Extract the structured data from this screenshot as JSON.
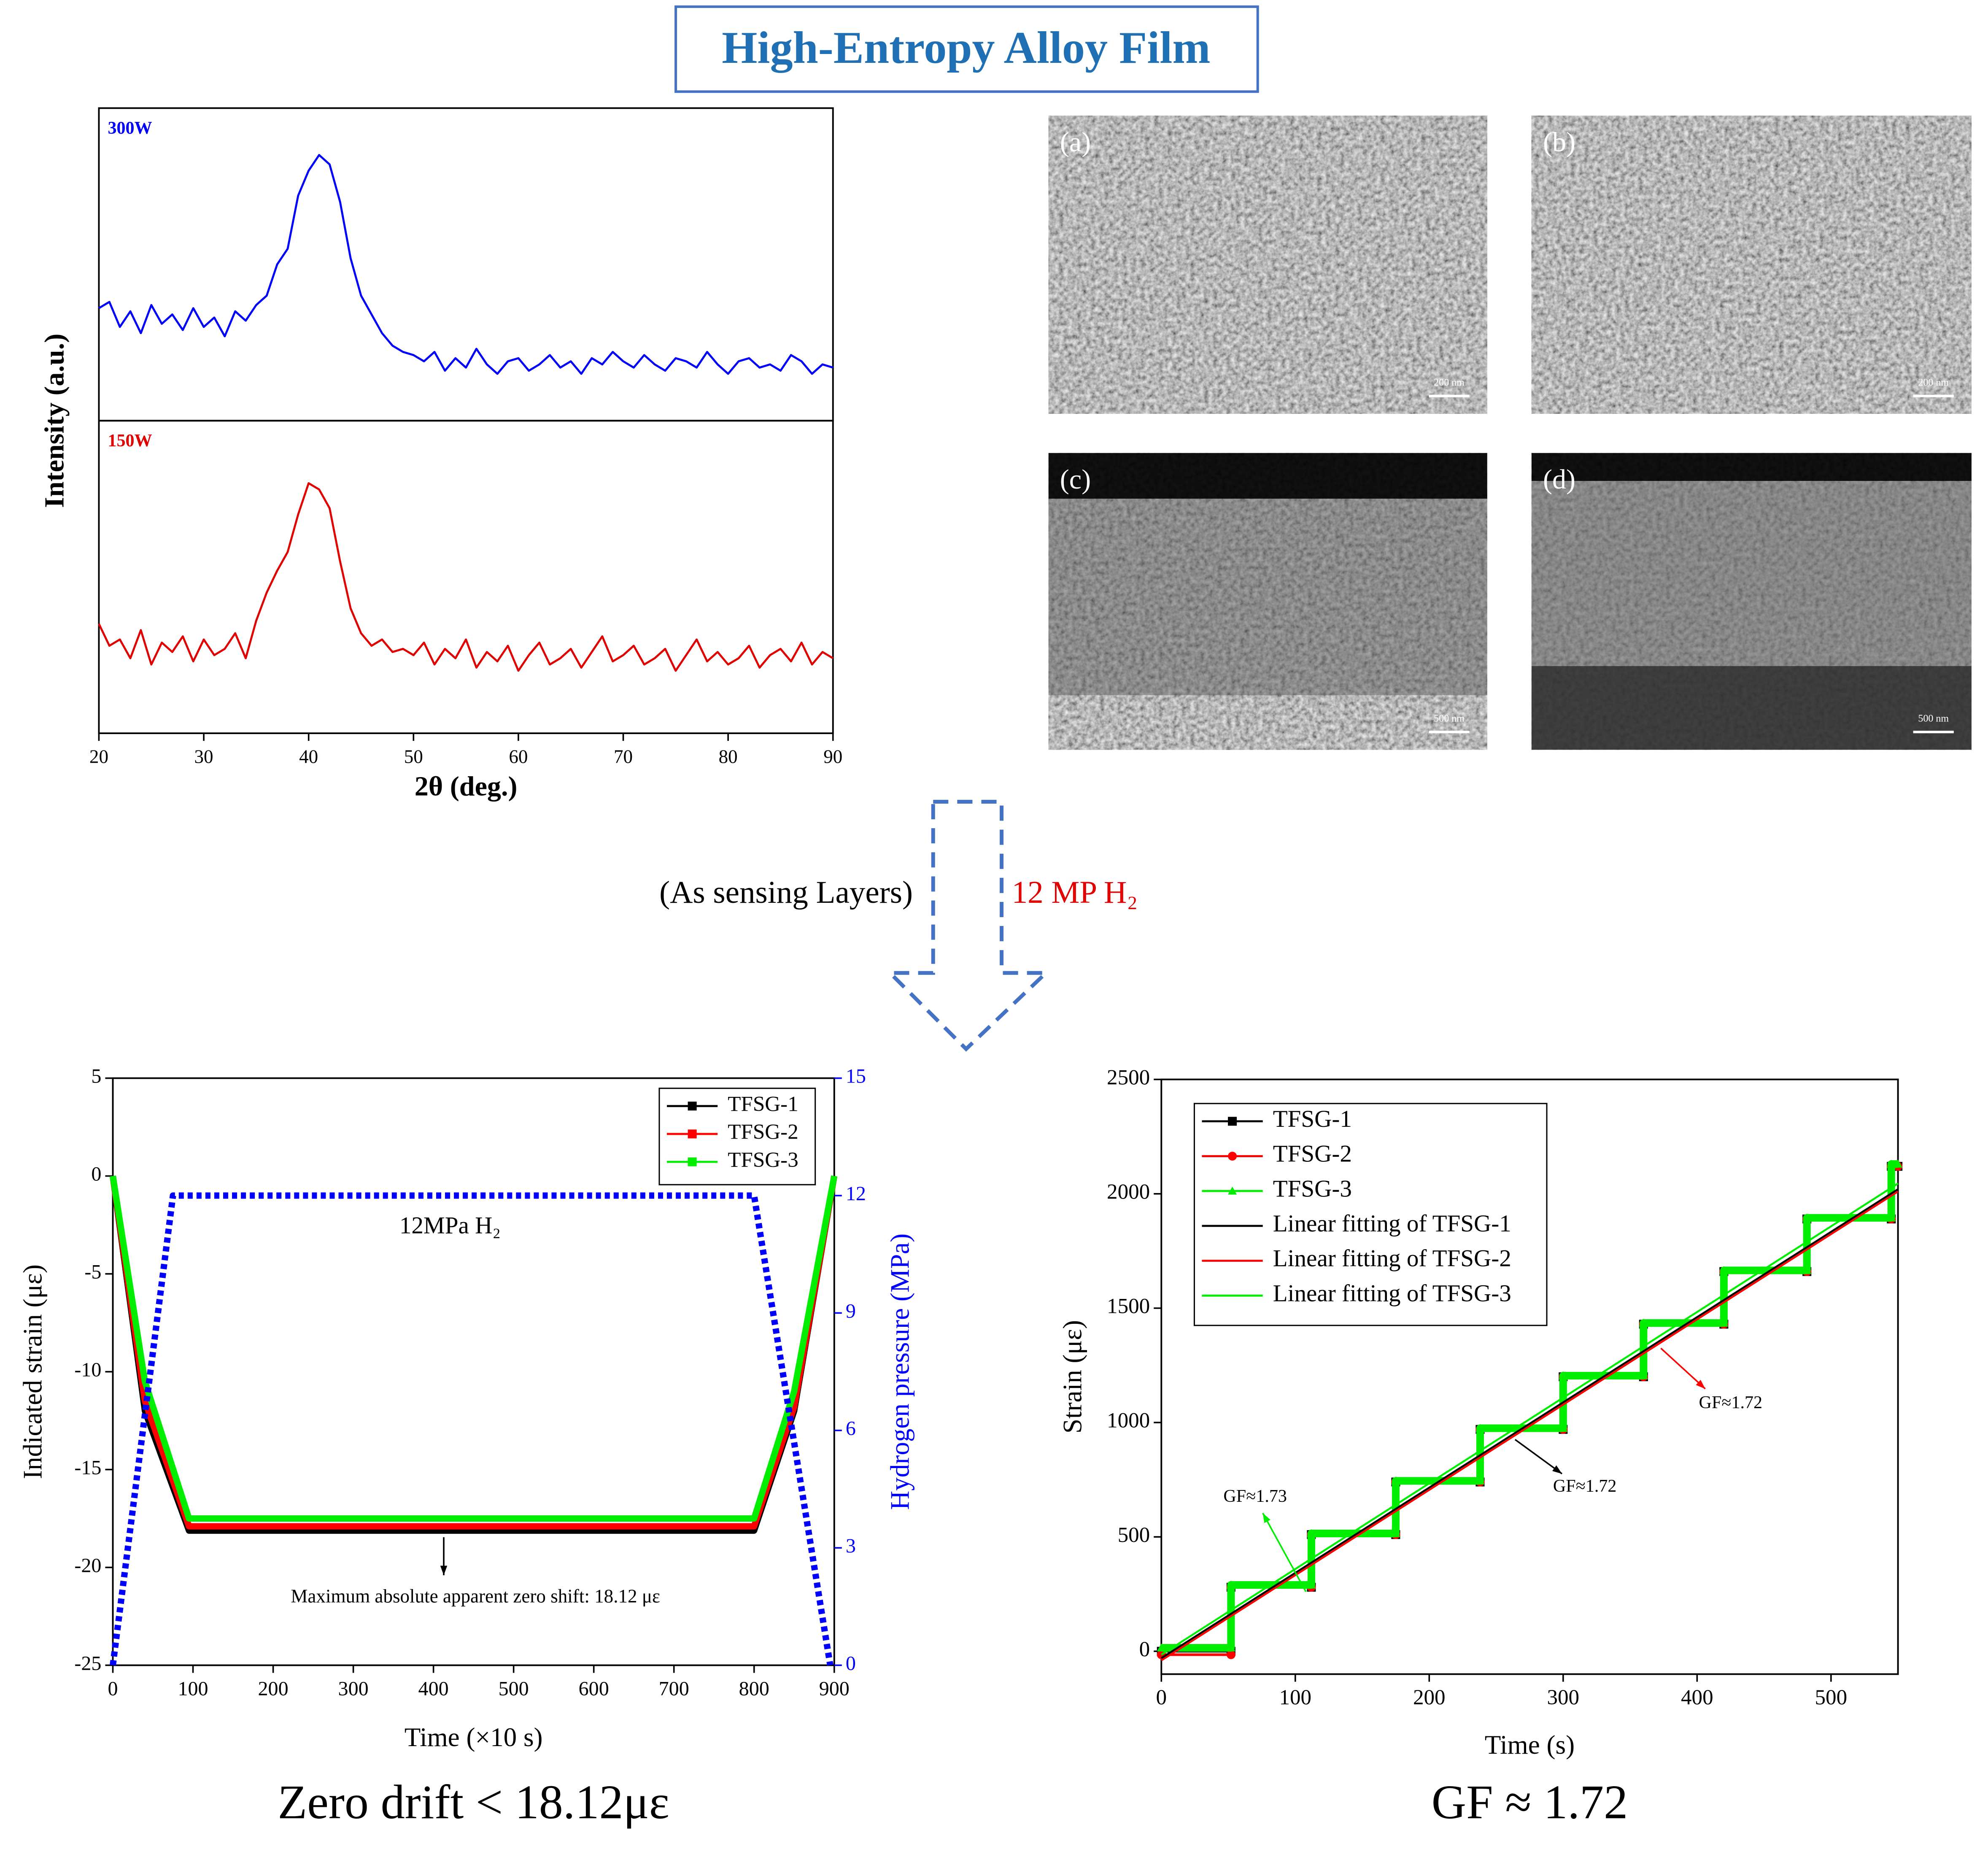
{
  "title": "High-Entropy Alloy Film",
  "flow_labels": [
    "(As sensing Layers)",
    "12 MP H₂"
  ],
  "sem_panels": [
    {
      "label": "(a)",
      "scale_bar": "200 nm"
    },
    {
      "label": "(b)",
      "scale_bar": "200 nm"
    },
    {
      "label": "(c)",
      "scale_bar": "500 nm"
    },
    {
      "label": "(d)",
      "scale_bar": "500 nm"
    }
  ],
  "chart_data": [
    {
      "type": "line",
      "layout": "stacked",
      "xlabel": "2θ (deg.)",
      "ylabel": "Intensity (a.u.)",
      "xlim": [
        20,
        90
      ],
      "xticks": [
        20,
        30,
        40,
        50,
        60,
        70,
        80,
        90
      ],
      "ylim": [
        0,
        100
      ],
      "x": [
        20,
        21,
        22,
        23,
        24,
        25,
        26,
        27,
        28,
        29,
        30,
        31,
        32,
        33,
        34,
        35,
        36,
        37,
        38,
        39,
        40,
        41,
        42,
        43,
        44,
        45,
        46,
        47,
        48,
        49,
        50,
        51,
        52,
        53,
        54,
        55,
        56,
        57,
        58,
        59,
        60,
        61,
        62,
        63,
        64,
        65,
        66,
        67,
        68,
        69,
        70,
        71,
        72,
        73,
        74,
        75,
        76,
        77,
        78,
        79,
        80,
        81,
        82,
        83,
        84,
        85,
        86,
        87,
        88,
        89,
        90
      ],
      "series": [
        {
          "name": "300W",
          "color": "#0000ff",
          "values": [
            36,
            38,
            30,
            35,
            28,
            37,
            31,
            34,
            29,
            36,
            30,
            33,
            27,
            35,
            32,
            37,
            40,
            50,
            55,
            72,
            80,
            85,
            82,
            70,
            52,
            40,
            34,
            28,
            24,
            22,
            21,
            19,
            22,
            16,
            20,
            17,
            23,
            18,
            15,
            19,
            20,
            16,
            18,
            21,
            17,
            19,
            15,
            20,
            18,
            22,
            19,
            17,
            21,
            18,
            16,
            20,
            19,
            17,
            22,
            18,
            15,
            19,
            20,
            17,
            18,
            16,
            21,
            19,
            15,
            18,
            17
          ]
        },
        {
          "name": "150W",
          "color": "#e00000",
          "values": [
            35,
            28,
            30,
            24,
            33,
            22,
            29,
            26,
            31,
            23,
            30,
            25,
            27,
            32,
            24,
            36,
            45,
            52,
            58,
            70,
            80,
            78,
            72,
            55,
            40,
            32,
            28,
            30,
            26,
            27,
            25,
            29,
            22,
            27,
            24,
            30,
            21,
            26,
            23,
            28,
            20,
            25,
            29,
            22,
            24,
            27,
            21,
            26,
            31,
            23,
            25,
            28,
            22,
            24,
            27,
            20,
            25,
            30,
            23,
            26,
            22,
            24,
            28,
            21,
            25,
            27,
            23,
            29,
            22,
            26,
            24
          ]
        }
      ]
    },
    {
      "type": "line",
      "xlabel": "Time (×10 s)",
      "ylabel": "Indicated strain (με)",
      "y2label": "Hydrogen pressure (MPa)",
      "xlim": [
        0,
        900
      ],
      "xticks": [
        0,
        100,
        200,
        300,
        400,
        500,
        600,
        700,
        800,
        900
      ],
      "ylim": [
        -25,
        5
      ],
      "yticks": [
        -25,
        -20,
        -15,
        -10,
        -5,
        0,
        5
      ],
      "y2lim": [
        0,
        15
      ],
      "y2ticks": [
        0,
        3,
        6,
        9,
        12,
        15
      ],
      "y2color": "#0000ff",
      "legend": "upper right",
      "caption": "Zero drift < 18.12με",
      "annotations": [
        {
          "text": "12MPa H₂"
        },
        {
          "text": "Maximum absolute apparent zero shift: 18.12 με"
        }
      ],
      "series": [
        {
          "name": "TFSG-1",
          "color": "#000000",
          "marker": "square",
          "x": [
            0,
            40,
            95,
            800,
            850,
            900
          ],
          "values": [
            0,
            -12,
            -18.12,
            -18.12,
            -12,
            0
          ]
        },
        {
          "name": "TFSG-2",
          "color": "#ff0000",
          "marker": "square",
          "x": [
            0,
            40,
            95,
            800,
            850,
            900
          ],
          "values": [
            0,
            -11.5,
            -17.9,
            -17.9,
            -11.8,
            0
          ]
        },
        {
          "name": "TFSG-3",
          "color": "#00ee00",
          "marker": "square",
          "x": [
            0,
            40,
            95,
            800,
            850,
            900
          ],
          "values": [
            0,
            -10.5,
            -17.5,
            -17.5,
            -11,
            0
          ]
        },
        {
          "color": "#0000ff",
          "axis": "y2",
          "line_style": "dotted",
          "x": [
            0,
            75,
            800,
            895
          ],
          "values": [
            0,
            12,
            12,
            0
          ]
        }
      ]
    },
    {
      "type": "line",
      "xlabel": "Time (s)",
      "ylabel": "Strain (με)",
      "xlim": [
        0,
        550
      ],
      "xticks": [
        0,
        100,
        200,
        300,
        400,
        500
      ],
      "ylim": [
        -100,
        2500
      ],
      "yticks": [
        0,
        500,
        1000,
        1500,
        2000,
        2500
      ],
      "legend": "upper left",
      "show_markers": true,
      "caption": "GF ≈ 1.72",
      "annotations": [
        {
          "text": "GF≈1.72",
          "color": "#ff0000"
        },
        {
          "text": "GF≈1.72",
          "color": "#000000"
        },
        {
          "text": "GF≈1.73",
          "color": "#00ee00"
        }
      ],
      "series": [
        {
          "name": "TFSG-1",
          "color": "#000000",
          "marker": "square",
          "x": [
            0,
            52,
            52,
            112,
            112,
            175,
            175,
            238,
            238,
            300,
            300,
            360,
            360,
            420,
            420,
            482,
            482,
            545,
            545,
            550
          ],
          "values": [
            0,
            0,
            280,
            280,
            510,
            510,
            740,
            740,
            970,
            970,
            1200,
            1200,
            1430,
            1430,
            1660,
            1660,
            1890,
            1890,
            2120,
            2120
          ]
        },
        {
          "name": "TFSG-2",
          "color": "#ff0000",
          "marker": "circle",
          "x": [
            0,
            52,
            52,
            112,
            112,
            175,
            175,
            238,
            238,
            300,
            300,
            360,
            360,
            420,
            420,
            482,
            482,
            545,
            545,
            550
          ],
          "values": [
            -15,
            -15,
            280,
            280,
            510,
            510,
            740,
            740,
            970,
            970,
            1200,
            1200,
            1430,
            1430,
            1660,
            1660,
            1890,
            1890,
            2120,
            2120
          ]
        },
        {
          "name": "TFSG-3",
          "color": "#00ee00",
          "marker": "triangle",
          "x": [
            0,
            52,
            52,
            112,
            112,
            175,
            175,
            238,
            238,
            300,
            300,
            360,
            360,
            420,
            420,
            482,
            482,
            545,
            545,
            550
          ],
          "values": [
            15,
            15,
            290,
            290,
            515,
            515,
            745,
            745,
            975,
            975,
            1205,
            1205,
            1435,
            1435,
            1665,
            1665,
            1895,
            1895,
            2130,
            2130
          ]
        },
        {
          "name": "Linear fitting of TFSG-1",
          "color": "#000000",
          "x": [
            0,
            550
          ],
          "values": [
            -30,
            2020
          ]
        },
        {
          "name": "Linear fitting of TFSG-2",
          "color": "#ff0000",
          "x": [
            0,
            550
          ],
          "values": [
            -40,
            2010
          ]
        },
        {
          "name": "Linear fitting of TFSG-3",
          "color": "#00ee00",
          "x": [
            0,
            550
          ],
          "values": [
            -15,
            2045
          ]
        }
      ]
    }
  ]
}
